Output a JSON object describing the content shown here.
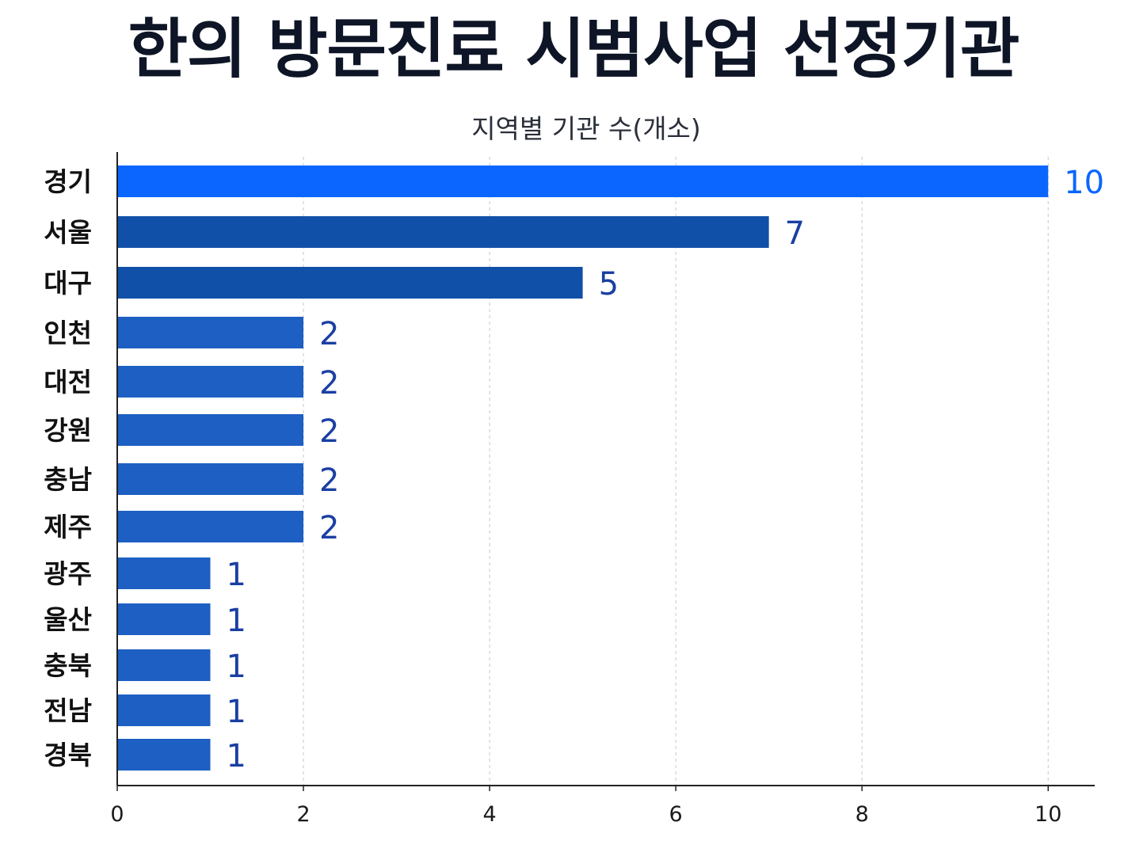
{
  "chart_data": {
    "type": "bar",
    "orientation": "horizontal",
    "title": "한의 방문진료 시범사업 선정기관",
    "subtitle": "지역별 기관 수(개소)",
    "xlabel": "",
    "ylabel": "",
    "categories": [
      "경기",
      "서울",
      "대구",
      "인천",
      "대전",
      "강원",
      "충남",
      "제주",
      "광주",
      "울산",
      "충북",
      "전남",
      "경북"
    ],
    "values": [
      10,
      7,
      5,
      2,
      2,
      2,
      2,
      2,
      1,
      1,
      1,
      1,
      1
    ],
    "xlim": [
      0,
      10.5
    ],
    "xticks": [
      0,
      2,
      4,
      6,
      8,
      10
    ],
    "grid": "vertical dashed",
    "legend": "none",
    "colors": {
      "highlight_bar": "#0a66ff",
      "highlight_label": "#0a66ff",
      "dark_bar": "#1150a8",
      "medium_bar": "#1d5fc2",
      "value_label": "#1a3fa3",
      "axis": "#222222",
      "grid": "#c8c8c8",
      "tick_label": "#1a1a1a",
      "category_label": "#111111"
    }
  }
}
